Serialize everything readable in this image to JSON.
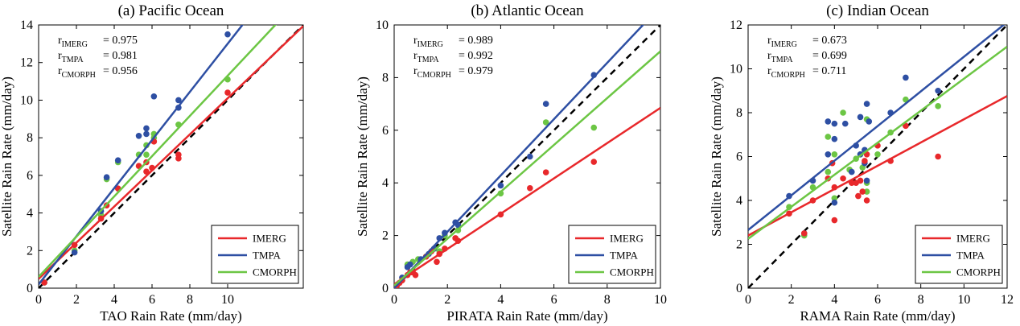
{
  "colors": {
    "IMERG": "#e8282b",
    "TMPA": "#2e4fa3",
    "CMORPH": "#6cc644",
    "one_to_one": "#000000"
  },
  "chart_data": [
    {
      "type": "scatter",
      "title": "(a) Pacific Ocean",
      "xlabel": "TAO Rain Rate (mm/day)",
      "ylabel": "Satellite Rain Rate (mm/day)",
      "xlim": [
        0,
        14
      ],
      "ylim": [
        0,
        14
      ],
      "xticks": [
        0,
        2,
        4,
        6,
        8,
        10
      ],
      "yticks": [
        0,
        2,
        4,
        6,
        8,
        10,
        12,
        14
      ],
      "stats": [
        {
          "sub": "IMERG",
          "value": "= 0.975"
        },
        {
          "sub": "TMPA",
          "value": "= 0.981"
        },
        {
          "sub": "CMORPH",
          "value": "= 0.956"
        }
      ],
      "legend": [
        "IMERG",
        "TMPA",
        "CMORPH"
      ],
      "series": [
        {
          "name": "IMERG",
          "fit": [
            0.5,
            0.96
          ],
          "points": [
            [
              0.3,
              0.3
            ],
            [
              1.9,
              2.3
            ],
            [
              3.3,
              3.7
            ],
            [
              3.6,
              4.4
            ],
            [
              4.2,
              5.3
            ],
            [
              5.3,
              6.5
            ],
            [
              5.7,
              6.2
            ],
            [
              5.7,
              6.7
            ],
            [
              6.0,
              6.4
            ],
            [
              6.1,
              7.8
            ],
            [
              7.4,
              6.9
            ],
            [
              7.4,
              7.1
            ],
            [
              10.0,
              10.4
            ]
          ]
        },
        {
          "name": "TMPA",
          "fit": [
            0.2,
            1.28
          ],
          "points": [
            [
              0.3,
              0.3
            ],
            [
              1.9,
              1.9
            ],
            [
              3.3,
              4.1
            ],
            [
              3.6,
              5.9
            ],
            [
              4.2,
              6.8
            ],
            [
              5.3,
              8.1
            ],
            [
              5.7,
              8.2
            ],
            [
              5.7,
              8.5
            ],
            [
              6.1,
              10.2
            ],
            [
              7.4,
              9.6
            ],
            [
              7.4,
              10.0
            ],
            [
              10.0,
              13.5
            ]
          ]
        },
        {
          "name": "CMORPH",
          "fit": [
            0.6,
            1.07
          ],
          "points": [
            [
              0.3,
              0.3
            ],
            [
              1.9,
              2.0
            ],
            [
              3.3,
              3.9
            ],
            [
              3.6,
              5.8
            ],
            [
              4.2,
              6.7
            ],
            [
              5.3,
              7.1
            ],
            [
              5.7,
              7.1
            ],
            [
              5.7,
              7.6
            ],
            [
              6.1,
              8.2
            ],
            [
              6.1,
              8.0
            ],
            [
              7.4,
              8.7
            ],
            [
              10.0,
              11.1
            ]
          ]
        }
      ]
    },
    {
      "type": "scatter",
      "title": "(b) Atlantic Ocean",
      "xlabel": "PIRATA Rain Rate (mm/day)",
      "ylabel": "Satellite Rain Rate (mm/day)",
      "xlim": [
        0,
        10
      ],
      "ylim": [
        0,
        10
      ],
      "xticks": [
        0,
        2,
        4,
        6,
        8,
        10
      ],
      "yticks": [
        0,
        2,
        4,
        6,
        8,
        10
      ],
      "stats": [
        {
          "sub": "IMERG",
          "value": "= 0.989"
        },
        {
          "sub": "TMPA",
          "value": "= 0.992"
        },
        {
          "sub": "CMORPH",
          "value": "= 0.979"
        }
      ],
      "legend": [
        "IMERG",
        "TMPA",
        "CMORPH"
      ],
      "series": [
        {
          "name": "IMERG",
          "fit": [
            0.15,
            0.67
          ],
          "points": [
            [
              0.1,
              0.1
            ],
            [
              0.2,
              0.2
            ],
            [
              0.3,
              0.3
            ],
            [
              0.5,
              0.5
            ],
            [
              0.6,
              0.6
            ],
            [
              0.7,
              0.6
            ],
            [
              0.8,
              0.5
            ],
            [
              1.2,
              1.2
            ],
            [
              1.4,
              1.4
            ],
            [
              1.6,
              1.0
            ],
            [
              1.7,
              1.3
            ],
            [
              1.9,
              1.5
            ],
            [
              2.3,
              1.9
            ],
            [
              2.4,
              1.8
            ],
            [
              4.0,
              2.8
            ],
            [
              5.1,
              3.8
            ],
            [
              5.7,
              4.4
            ],
            [
              7.5,
              4.8
            ]
          ]
        },
        {
          "name": "TMPA",
          "fit": [
            0.0,
            1.07
          ],
          "points": [
            [
              0.1,
              0.1
            ],
            [
              0.3,
              0.4
            ],
            [
              0.5,
              0.8
            ],
            [
              0.6,
              0.9
            ],
            [
              1.0,
              1.1
            ],
            [
              1.3,
              1.3
            ],
            [
              1.5,
              1.5
            ],
            [
              1.7,
              1.9
            ],
            [
              1.9,
              2.1
            ],
            [
              2.3,
              2.5
            ],
            [
              2.4,
              2.4
            ],
            [
              4.0,
              3.9
            ],
            [
              5.1,
              5.0
            ],
            [
              5.7,
              7.0
            ],
            [
              7.5,
              8.1
            ]
          ]
        },
        {
          "name": "CMORPH",
          "fit": [
            0.1,
            0.89
          ],
          "points": [
            [
              0.1,
              0.1
            ],
            [
              0.3,
              0.3
            ],
            [
              0.5,
              0.9
            ],
            [
              0.7,
              1.0
            ],
            [
              0.9,
              1.1
            ],
            [
              1.2,
              1.2
            ],
            [
              1.5,
              1.5
            ],
            [
              1.7,
              1.4
            ],
            [
              1.9,
              2.0
            ],
            [
              2.4,
              2.2
            ],
            [
              4.0,
              3.6
            ],
            [
              5.7,
              6.3
            ],
            [
              7.5,
              6.1
            ]
          ]
        }
      ]
    },
    {
      "type": "scatter",
      "title": "(c) Indian Ocean",
      "xlabel": "RAMA Rain Rate (mm/day)",
      "ylabel": "Satellite Rain Rate (mm/day)",
      "xlim": [
        0,
        12
      ],
      "ylim": [
        0,
        12
      ],
      "xticks": [
        0,
        2,
        4,
        6,
        8,
        10,
        12
      ],
      "yticks": [
        0,
        2,
        4,
        6,
        8,
        10,
        12
      ],
      "stats": [
        {
          "sub": "IMERG",
          "value": "= 0.673"
        },
        {
          "sub": "TMPA",
          "value": "= 0.699"
        },
        {
          "sub": "CMORPH",
          "value": "= 0.711"
        }
      ],
      "legend": [
        "IMERG",
        "TMPA",
        "CMORPH"
      ],
      "series": [
        {
          "name": "IMERG",
          "fit": [
            2.4,
            0.53
          ],
          "points": [
            [
              1.9,
              3.4
            ],
            [
              2.6,
              2.5
            ],
            [
              3.0,
              4.0
            ],
            [
              3.7,
              5.0
            ],
            [
              3.9,
              5.7
            ],
            [
              4.0,
              3.1
            ],
            [
              4.0,
              4.6
            ],
            [
              4.4,
              5.0
            ],
            [
              4.8,
              4.8
            ],
            [
              5.0,
              4.8
            ],
            [
              5.1,
              4.2
            ],
            [
              5.2,
              4.9
            ],
            [
              5.3,
              4.4
            ],
            [
              5.4,
              5.8
            ],
            [
              5.5,
              4.0
            ],
            [
              5.5,
              6.1
            ],
            [
              6.0,
              6.5
            ],
            [
              6.6,
              5.8
            ],
            [
              7.3,
              7.4
            ],
            [
              8.8,
              6.0
            ]
          ]
        },
        {
          "name": "TMPA",
          "fit": [
            2.65,
            0.79
          ],
          "points": [
            [
              1.9,
              4.2
            ],
            [
              2.6,
              2.5
            ],
            [
              3.0,
              4.9
            ],
            [
              3.7,
              7.6
            ],
            [
              3.7,
              6.1
            ],
            [
              4.0,
              7.5
            ],
            [
              4.0,
              6.8
            ],
            [
              4.0,
              3.9
            ],
            [
              4.5,
              7.5
            ],
            [
              4.8,
              5.3
            ],
            [
              5.0,
              6.5
            ],
            [
              5.2,
              7.8
            ],
            [
              5.2,
              6.1
            ],
            [
              5.4,
              5.7
            ],
            [
              5.4,
              6.3
            ],
            [
              5.5,
              8.4
            ],
            [
              5.5,
              4.9
            ],
            [
              5.6,
              7.6
            ],
            [
              6.6,
              8.0
            ],
            [
              7.3,
              9.6
            ],
            [
              8.8,
              9.0
            ]
          ]
        },
        {
          "name": "CMORPH",
          "fit": [
            2.25,
            0.73
          ],
          "points": [
            [
              1.9,
              3.7
            ],
            [
              2.6,
              2.4
            ],
            [
              3.0,
              4.6
            ],
            [
              3.7,
              6.9
            ],
            [
              3.7,
              5.3
            ],
            [
              4.0,
              6.1
            ],
            [
              4.0,
              4.1
            ],
            [
              4.4,
              8.0
            ],
            [
              4.7,
              5.4
            ],
            [
              5.0,
              5.9
            ],
            [
              5.2,
              6.1
            ],
            [
              5.3,
              5.5
            ],
            [
              5.5,
              7.7
            ],
            [
              5.5,
              4.4
            ],
            [
              5.5,
              4.8
            ],
            [
              6.0,
              6.1
            ],
            [
              6.6,
              7.1
            ],
            [
              7.3,
              8.6
            ],
            [
              8.8,
              8.3
            ]
          ]
        }
      ]
    }
  ]
}
